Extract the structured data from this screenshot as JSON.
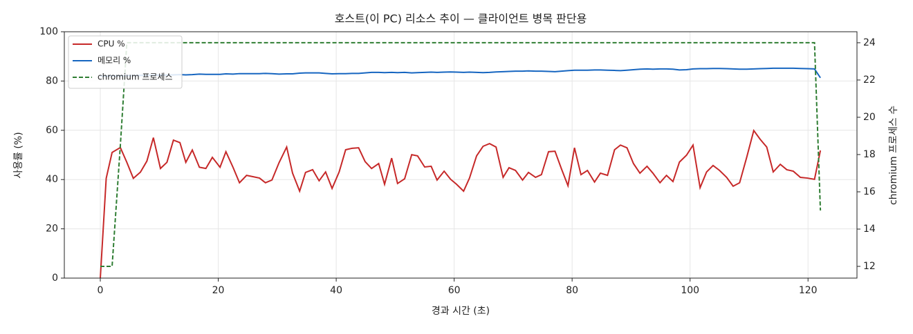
{
  "chart_data": {
    "type": "line",
    "title": "호스트(이 PC) 리소스 추이 — 클라이언트 병목 판단용",
    "xlabel": "경과 시간 (초)",
    "ylabel": "사용률 (%)",
    "y2label": "chromium 프로세스 수",
    "xlim": [
      -6.1,
      128.3
    ],
    "xticks": [
      0,
      20,
      40,
      60,
      80,
      100,
      120
    ],
    "ylim": [
      0,
      100
    ],
    "yticks": [
      0,
      20,
      40,
      60,
      80,
      100
    ],
    "y2lim": [
      11.37,
      24.59
    ],
    "y2ticks": [
      12,
      14,
      16,
      18,
      20,
      22,
      24
    ],
    "grid": true,
    "legend": "upper left",
    "x": [
      0,
      1,
      2,
      3.4,
      4.5,
      5.6,
      6.8,
      7.9,
      9,
      10.2,
      11.3,
      12.4,
      13.5,
      14.5,
      15.6,
      16.8,
      17.9,
      19,
      20.3,
      21.3,
      22.5,
      23.6,
      24.8,
      25.8,
      27,
      28,
      29.1,
      30.3,
      31.6,
      32.6,
      33.8,
      34.8,
      36,
      37.1,
      38.2,
      39.3,
      40.5,
      41.6,
      42.7,
      43.8,
      44.9,
      46,
      47.2,
      48.2,
      49.4,
      50.4,
      51.6,
      52.8,
      53.8,
      55,
      56.1,
      57.1,
      58.3,
      59.4,
      60.4,
      61.6,
      62.6,
      63.8,
      64.9,
      66,
      67.1,
      68.3,
      69.3,
      70.4,
      71.6,
      72.6,
      73.8,
      74.8,
      76,
      77.1,
      78.2,
      79.3,
      80.4,
      81.5,
      82.6,
      83.8,
      84.8,
      86,
      87.2,
      88.2,
      89.3,
      90.4,
      91.5,
      92.7,
      93.7,
      94.9,
      96,
      97.1,
      98.2,
      99.4,
      100.5,
      101.7,
      102.8,
      103.9,
      105,
      106.2,
      107.3,
      108.4,
      109.6,
      110.8,
      111.9,
      113,
      114.1,
      115.3,
      116.4,
      117.5,
      118.7,
      119.9,
      121.1,
      122.1
    ],
    "series": [
      {
        "name": "CPU %",
        "color": "#c62828",
        "dash": false,
        "values": [
          0,
          40.5,
          51,
          53,
          47,
          40.5,
          43,
          47.5,
          57,
          44.5,
          47,
          56,
          55,
          47,
          52,
          45,
          44.5,
          49,
          45,
          51.3,
          45,
          38.7,
          41.7,
          41.2,
          40.6,
          38.7,
          39.8,
          46.8,
          53.2,
          42.6,
          35.3,
          42.9,
          44,
          39.5,
          43.1,
          36.4,
          43.1,
          52.1,
          52.7,
          52.9,
          47.3,
          44.5,
          46.5,
          38.1,
          48.7,
          38.4,
          40.3,
          50.1,
          49.6,
          45.1,
          45.4,
          39.8,
          43.4,
          40.1,
          38.1,
          35.3,
          40.6,
          49.6,
          53.5,
          54.6,
          53.2,
          40.9,
          44.8,
          43.7,
          39.8,
          42.9,
          40.9,
          42,
          51.3,
          51.5,
          44.3,
          37.5,
          52.9,
          42,
          43.7,
          39,
          42.6,
          41.7,
          52.1,
          54,
          52.9,
          46.5,
          42.6,
          45.4,
          42.6,
          38.7,
          41.7,
          39.2,
          47.1,
          49.9,
          54,
          36.7,
          43.1,
          45.7,
          43.7,
          40.9,
          37.3,
          38.7,
          49,
          59.9,
          56.3,
          53.2,
          43.1,
          46.2,
          44,
          43.4,
          40.9,
          40.6,
          40.1,
          51.8
        ]
      },
      {
        "name": "메모리 %",
        "color": "#1565c0",
        "dash": false,
        "values": [
          82,
          82,
          82.1,
          82.1,
          82.2,
          82.2,
          82.3,
          82.3,
          82.4,
          82.4,
          82.4,
          82.5,
          82.6,
          82.5,
          82.6,
          82.8,
          82.7,
          82.7,
          82.7,
          82.9,
          82.8,
          83,
          83,
          83,
          83,
          83.1,
          83,
          82.8,
          82.9,
          82.9,
          83.2,
          83.3,
          83.3,
          83.3,
          83.1,
          82.9,
          83,
          83,
          83.1,
          83.1,
          83.3,
          83.5,
          83.5,
          83.4,
          83.5,
          83.4,
          83.5,
          83.3,
          83.4,
          83.5,
          83.6,
          83.5,
          83.6,
          83.7,
          83.6,
          83.5,
          83.6,
          83.5,
          83.4,
          83.5,
          83.7,
          83.8,
          83.9,
          84,
          84,
          84.1,
          84,
          84,
          83.9,
          83.8,
          84,
          84.2,
          84.4,
          84.4,
          84.4,
          84.5,
          84.5,
          84.4,
          84.3,
          84.2,
          84.4,
          84.6,
          84.8,
          84.9,
          84.8,
          84.9,
          84.9,
          84.8,
          84.5,
          84.6,
          84.9,
          85,
          85,
          85.1,
          85.1,
          85,
          84.9,
          84.8,
          84.8,
          84.9,
          85,
          85.1,
          85.2,
          85.2,
          85.2,
          85.2,
          85.1,
          85,
          84.9,
          81.3
        ]
      },
      {
        "name": "chromium 프로세스",
        "color": "#2e7d32",
        "dash": true,
        "axis": "y2",
        "values": [
          12,
          12,
          12,
          18.5,
          24,
          24,
          24,
          24,
          24,
          24,
          24,
          24,
          24,
          24,
          24,
          24,
          24,
          24,
          24,
          24,
          24,
          24,
          24,
          24,
          24,
          24,
          24,
          24,
          24,
          24,
          24,
          24,
          24,
          24,
          24,
          24,
          24,
          24,
          24,
          24,
          24,
          24,
          24,
          24,
          24,
          24,
          24,
          24,
          24,
          24,
          24,
          24,
          24,
          24,
          24,
          24,
          24,
          24,
          24,
          24,
          24,
          24,
          24,
          24,
          24,
          24,
          24,
          24,
          24,
          24,
          24,
          24,
          24,
          24,
          24,
          24,
          24,
          24,
          24,
          24,
          24,
          24,
          24,
          24,
          24,
          24,
          24,
          24,
          24,
          24,
          24,
          24,
          24,
          24,
          24,
          24,
          24,
          24,
          24,
          24,
          24,
          24,
          24,
          24,
          24,
          24,
          24,
          24,
          24,
          15
        ]
      }
    ]
  }
}
